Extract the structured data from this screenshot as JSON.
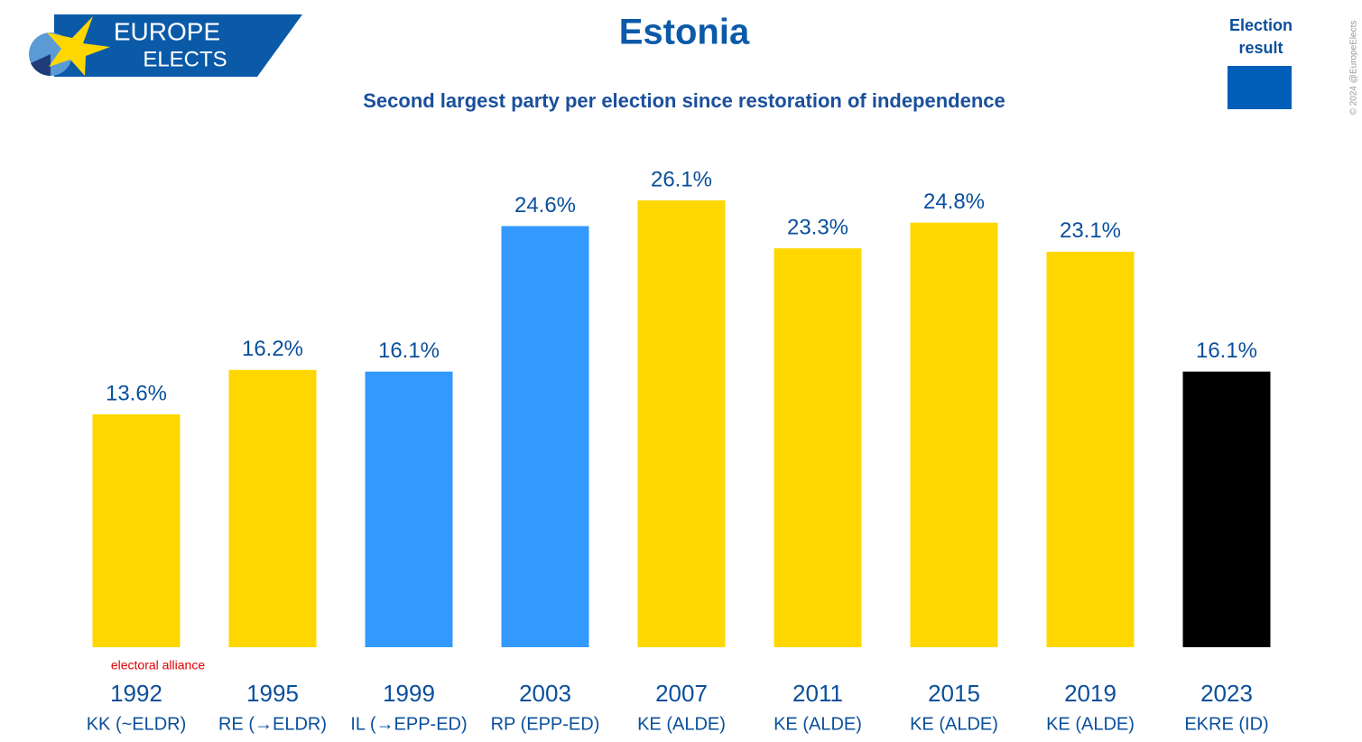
{
  "chart_data": {
    "type": "bar",
    "title": "Estonia",
    "subtitle": "Second largest party per election since restoration of independence",
    "logo": [
      "EUROPE",
      "ELECTS"
    ],
    "categories": [
      "1992",
      "1995",
      "1999",
      "2003",
      "2007",
      "2011",
      "2015",
      "2019",
      "2023"
    ],
    "parties": [
      "KK (~ELDR)",
      "RE (→ELDR)",
      "IL (→EPP-ED)",
      "RP (EPP-ED)",
      "KE (ALDE)",
      "KE (ALDE)",
      "KE (ALDE)",
      "KE (ALDE)",
      "EKRE (ID)"
    ],
    "values": [
      13.6,
      16.2,
      16.1,
      24.6,
      26.1,
      23.3,
      24.8,
      23.1,
      16.1
    ],
    "value_labels": [
      "13.6%",
      "16.2%",
      "16.1%",
      "24.6%",
      "26.1%",
      "23.3%",
      "24.8%",
      "23.1%",
      "16.1%"
    ],
    "colors": [
      "#ffd700",
      "#ffd700",
      "#3399ff",
      "#3399ff",
      "#ffd700",
      "#ffd700",
      "#ffd700",
      "#ffd700",
      "#000000"
    ],
    "annotation": "electoral alliance",
    "legend": {
      "name": "Election result",
      "color": "#005eb8"
    },
    "copyright": "© 2024 @EuropeElects"
  }
}
